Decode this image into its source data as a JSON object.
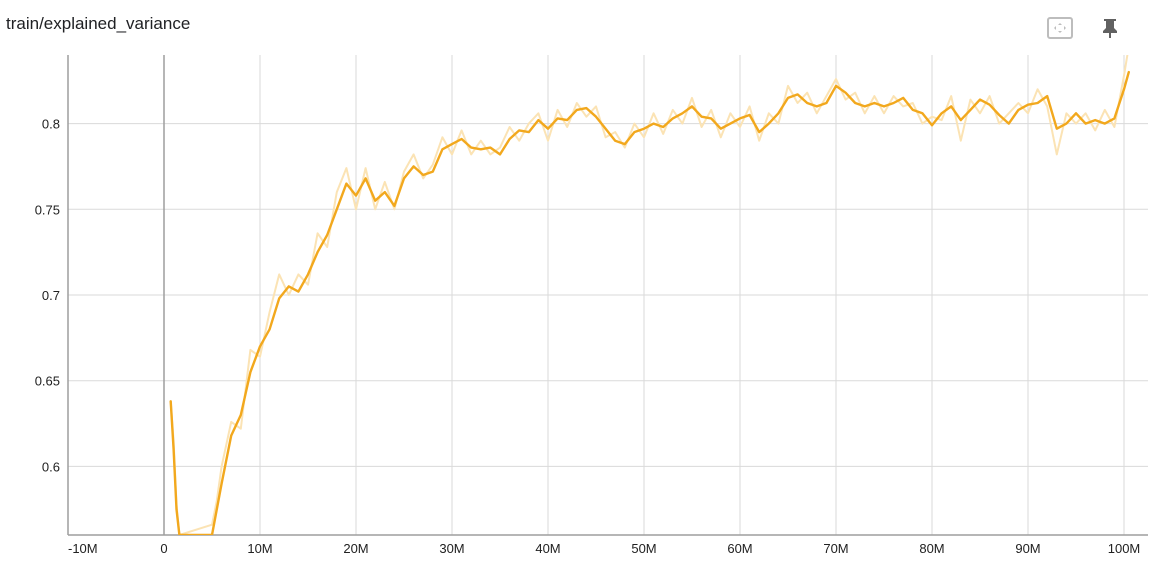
{
  "header": {
    "title": "train/explained_variance"
  },
  "toolbar": {
    "fit_icon": "fit-to-data-icon",
    "pin_icon": "pin-icon"
  },
  "colors": {
    "smoothed": "#f2a81d",
    "raw": "#fbe3b4",
    "grid": "#dadada",
    "axis": "#9e9e9e"
  },
  "chart_data": {
    "type": "line",
    "title": "train/explained_variance",
    "xlabel": "",
    "ylabel": "",
    "xlim": [
      -10000000,
      102500000
    ],
    "ylim": [
      0.56,
      0.84
    ],
    "xticks": [
      {
        "value": -10000000,
        "label": "-10M"
      },
      {
        "value": 0,
        "label": "0"
      },
      {
        "value": 10000000,
        "label": "10M"
      },
      {
        "value": 20000000,
        "label": "20M"
      },
      {
        "value": 30000000,
        "label": "30M"
      },
      {
        "value": 40000000,
        "label": "40M"
      },
      {
        "value": 50000000,
        "label": "50M"
      },
      {
        "value": 60000000,
        "label": "60M"
      },
      {
        "value": 70000000,
        "label": "70M"
      },
      {
        "value": 80000000,
        "label": "80M"
      },
      {
        "value": 90000000,
        "label": "90M"
      },
      {
        "value": 100000000,
        "label": "100M"
      }
    ],
    "yticks": [
      {
        "value": 0.6,
        "label": "0.6"
      },
      {
        "value": 0.65,
        "label": "0.65"
      },
      {
        "value": 0.7,
        "label": "0.7"
      },
      {
        "value": 0.75,
        "label": "0.75"
      },
      {
        "value": 0.8,
        "label": "0.8"
      }
    ],
    "grid": true,
    "series": [
      {
        "role": "smoothed",
        "x": [
          700000,
          1000000,
          1300000,
          1600000,
          5000000,
          5500000,
          6000000,
          7000000,
          8000000,
          9000000,
          10000000,
          11000000,
          12000000,
          13000000,
          14000000,
          15000000,
          16000000,
          17000000,
          18000000,
          19000000,
          20000000,
          21000000,
          22000000,
          23000000,
          24000000,
          25000000,
          26000000,
          27000000,
          28000000,
          29000000,
          30000000,
          31000000,
          32000000,
          33000000,
          34000000,
          35000000,
          36000000,
          37000000,
          38000000,
          39000000,
          40000000,
          41000000,
          42000000,
          43000000,
          44000000,
          45000000,
          46000000,
          47000000,
          48000000,
          49000000,
          50000000,
          51000000,
          52000000,
          53000000,
          54000000,
          55000000,
          56000000,
          57000000,
          58000000,
          59000000,
          60000000,
          61000000,
          62000000,
          63000000,
          64000000,
          65000000,
          66000000,
          67000000,
          68000000,
          69000000,
          70000000,
          71000000,
          72000000,
          73000000,
          74000000,
          75000000,
          76000000,
          77000000,
          78000000,
          79000000,
          80000000,
          81000000,
          82000000,
          83000000,
          84000000,
          85000000,
          86000000,
          87000000,
          88000000,
          89000000,
          90000000,
          91000000,
          92000000,
          93000000,
          94000000,
          95000000,
          96000000,
          97000000,
          98000000,
          99000000,
          100000000,
          100500000
        ],
        "y": [
          0.638,
          0.61,
          0.575,
          0.56,
          0.56,
          0.575,
          0.59,
          0.618,
          0.63,
          0.655,
          0.67,
          0.68,
          0.698,
          0.705,
          0.702,
          0.712,
          0.725,
          0.735,
          0.75,
          0.765,
          0.758,
          0.768,
          0.755,
          0.76,
          0.752,
          0.768,
          0.775,
          0.77,
          0.772,
          0.785,
          0.788,
          0.791,
          0.786,
          0.785,
          0.786,
          0.782,
          0.791,
          0.796,
          0.795,
          0.802,
          0.797,
          0.803,
          0.802,
          0.808,
          0.809,
          0.804,
          0.797,
          0.79,
          0.788,
          0.795,
          0.797,
          0.8,
          0.798,
          0.803,
          0.806,
          0.81,
          0.804,
          0.803,
          0.797,
          0.8,
          0.803,
          0.805,
          0.795,
          0.8,
          0.806,
          0.815,
          0.817,
          0.812,
          0.81,
          0.812,
          0.822,
          0.818,
          0.812,
          0.81,
          0.812,
          0.81,
          0.812,
          0.815,
          0.808,
          0.806,
          0.799,
          0.806,
          0.81,
          0.802,
          0.808,
          0.814,
          0.811,
          0.805,
          0.8,
          0.808,
          0.811,
          0.812,
          0.816,
          0.797,
          0.8,
          0.806,
          0.8,
          0.802,
          0.8,
          0.803,
          0.82,
          0.83
        ]
      },
      {
        "role": "raw",
        "x": [
          700000,
          1000000,
          1300000,
          1600000,
          5000000,
          5500000,
          6000000,
          7000000,
          8000000,
          9000000,
          10000000,
          11000000,
          12000000,
          13000000,
          14000000,
          15000000,
          16000000,
          17000000,
          18000000,
          19000000,
          20000000,
          21000000,
          22000000,
          23000000,
          24000000,
          25000000,
          26000000,
          27000000,
          28000000,
          29000000,
          30000000,
          31000000,
          32000000,
          33000000,
          34000000,
          35000000,
          36000000,
          37000000,
          38000000,
          39000000,
          40000000,
          41000000,
          42000000,
          43000000,
          44000000,
          45000000,
          46000000,
          47000000,
          48000000,
          49000000,
          50000000,
          51000000,
          52000000,
          53000000,
          54000000,
          55000000,
          56000000,
          57000000,
          58000000,
          59000000,
          60000000,
          61000000,
          62000000,
          63000000,
          64000000,
          65000000,
          66000000,
          67000000,
          68000000,
          69000000,
          70000000,
          71000000,
          72000000,
          73000000,
          74000000,
          75000000,
          76000000,
          77000000,
          78000000,
          79000000,
          80000000,
          81000000,
          82000000,
          83000000,
          84000000,
          85000000,
          86000000,
          87000000,
          88000000,
          89000000,
          90000000,
          91000000,
          92000000,
          93000000,
          94000000,
          95000000,
          96000000,
          97000000,
          98000000,
          99000000,
          100000000,
          100500000
        ],
        "y": [
          0.638,
          0.615,
          0.578,
          0.56,
          0.566,
          0.58,
          0.6,
          0.626,
          0.622,
          0.668,
          0.664,
          0.69,
          0.712,
          0.7,
          0.712,
          0.706,
          0.736,
          0.728,
          0.76,
          0.774,
          0.75,
          0.774,
          0.75,
          0.766,
          0.75,
          0.772,
          0.782,
          0.768,
          0.776,
          0.792,
          0.782,
          0.796,
          0.782,
          0.79,
          0.782,
          0.786,
          0.798,
          0.79,
          0.8,
          0.806,
          0.79,
          0.808,
          0.798,
          0.812,
          0.804,
          0.81,
          0.792,
          0.795,
          0.786,
          0.8,
          0.792,
          0.806,
          0.794,
          0.808,
          0.8,
          0.815,
          0.798,
          0.808,
          0.792,
          0.806,
          0.798,
          0.81,
          0.79,
          0.806,
          0.8,
          0.822,
          0.812,
          0.818,
          0.806,
          0.816,
          0.826,
          0.814,
          0.818,
          0.806,
          0.816,
          0.806,
          0.816,
          0.81,
          0.812,
          0.8,
          0.804,
          0.802,
          0.816,
          0.79,
          0.814,
          0.806,
          0.816,
          0.8,
          0.806,
          0.812,
          0.806,
          0.82,
          0.81,
          0.782,
          0.806,
          0.8,
          0.806,
          0.796,
          0.808,
          0.798,
          0.828,
          0.845
        ]
      }
    ]
  }
}
